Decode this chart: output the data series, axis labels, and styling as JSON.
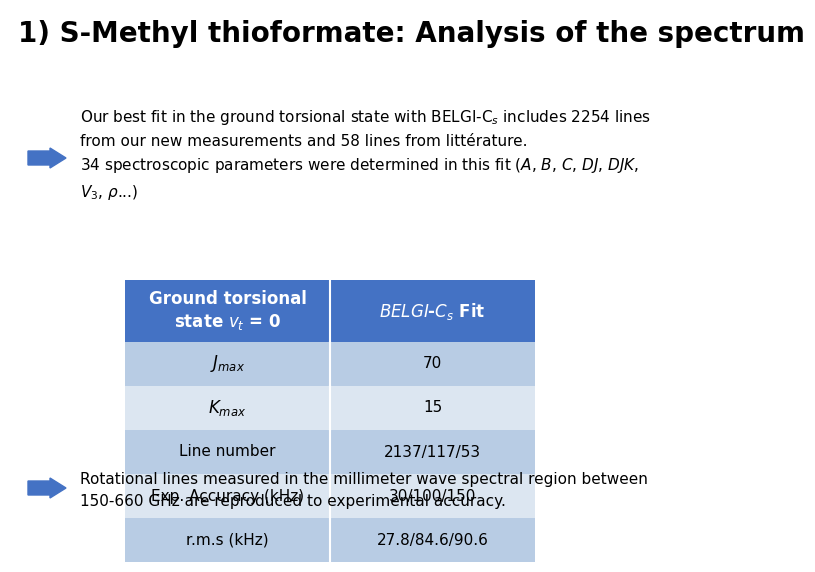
{
  "title": "1) S-Methyl thioformate: Analysis of the spectrum",
  "title_fontsize": 20,
  "title_color": "#000000",
  "background_color": "#ffffff",
  "header_bg": "#4472C4",
  "header_text_color": "#ffffff",
  "row_bg_odd": "#b8cce4",
  "row_bg_even": "#dce6f1",
  "table_text_color": "#000000",
  "arrow_color": "#4472C4",
  "text_fontsize": 11,
  "table_fontsize": 11,
  "table_rows": [
    [
      "Jmax",
      "70"
    ],
    [
      "Kmax",
      "15"
    ],
    [
      "Line number",
      "2137/117/53"
    ],
    [
      "Exp. Accuracy (kHz)",
      "30/100/150"
    ],
    [
      "r.m.s (kHz)",
      "27.8/84.6/90.6"
    ]
  ]
}
